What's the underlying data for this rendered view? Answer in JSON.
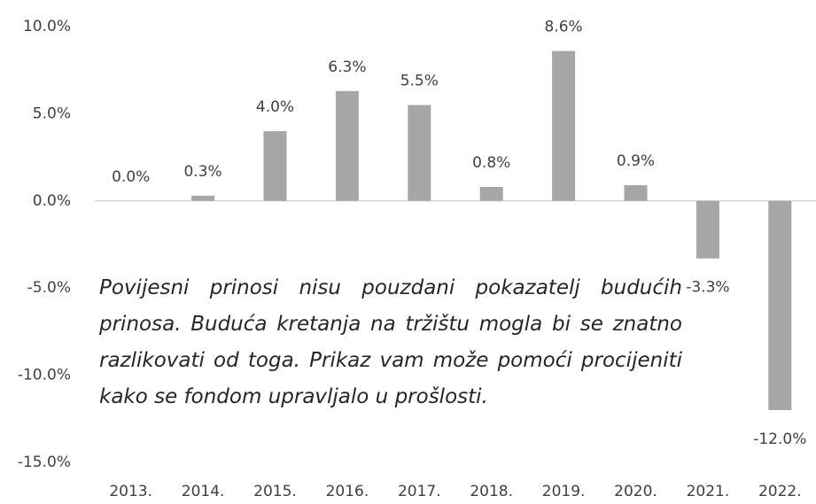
{
  "chart_data": {
    "type": "bar",
    "categories": [
      "2013.",
      "2014.",
      "2015.",
      "2016.",
      "2017.",
      "2018.",
      "2019.",
      "2020.",
      "2021.",
      "2022."
    ],
    "values": [
      0.0,
      0.3,
      4.0,
      6.3,
      5.5,
      0.8,
      8.6,
      0.9,
      -3.3,
      -12.0
    ],
    "value_labels": [
      "0.0%",
      "0.3%",
      "4.0%",
      "6.3%",
      "5.5%",
      "0.8%",
      "8.6%",
      "0.9%",
      "-3.3%",
      "-12.0%"
    ],
    "color": "#a6a6a6",
    "ylim": [
      -15,
      10
    ],
    "yticks": [
      {
        "value": 10,
        "label": "10.0%"
      },
      {
        "value": 5,
        "label": "5.0%"
      },
      {
        "value": 0,
        "label": "0.0%"
      },
      {
        "value": -5,
        "label": "-5.0%"
      },
      {
        "value": -10,
        "label": "-10.0%"
      },
      {
        "value": -15,
        "label": "-15.0%"
      }
    ],
    "grid": false,
    "annotation": "Povijesni prinosi nisu pouzdani pokazatelj budućih prinosa. Buduća kretanja na tržištu mogla bi se znatno razlikovati od toga. Prikaz vam može pomoći procijeniti kako se fondom upravljalo u prošlosti."
  }
}
